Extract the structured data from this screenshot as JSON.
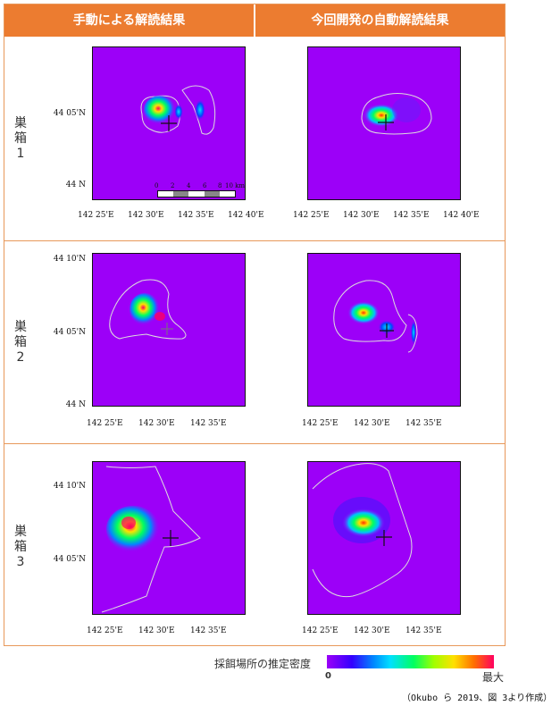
{
  "headers": {
    "manual": "手動による解読結果",
    "auto": "今回開発の自動解読結果"
  },
  "rows": [
    {
      "label": "巣箱\n1",
      "l1": "巣",
      "l2": "箱",
      "l3": "1"
    },
    {
      "label": "巣箱\n2",
      "l1": "巣",
      "l2": "箱",
      "l3": "2"
    },
    {
      "label": "巣箱\n3",
      "l1": "巣",
      "l2": "箱",
      "l3": "3"
    }
  ],
  "axes": {
    "row1_x": [
      "142 25'E",
      "142 30'E",
      "142 35'E",
      "142 40'E"
    ],
    "row1_y": [
      "44 05'N",
      "44 N"
    ],
    "row2_x": [
      "142 25'E",
      "142 30'E",
      "142 35'E"
    ],
    "row2_y": [
      "44 10'N",
      "44 05'N",
      "44 N"
    ],
    "row3_x": [
      "142 25'E",
      "142 30'E",
      "142 35'E"
    ],
    "row3_y": [
      "44 10'N",
      "44 05'N"
    ]
  },
  "scale": {
    "labels": [
      "0",
      "2",
      "4",
      "6",
      "8",
      "10 km"
    ]
  },
  "legend": {
    "label": "採餌場所の推定密度",
    "min": "0",
    "max": "最大",
    "colors": [
      "#9c00f8",
      "#3300ff",
      "#0088ff",
      "#00e0ff",
      "#00ff60",
      "#a0ff00",
      "#ffe000",
      "#ff7000",
      "#ff0060"
    ]
  },
  "credit": "（Okubo ら 2019、図 3より作成）"
}
